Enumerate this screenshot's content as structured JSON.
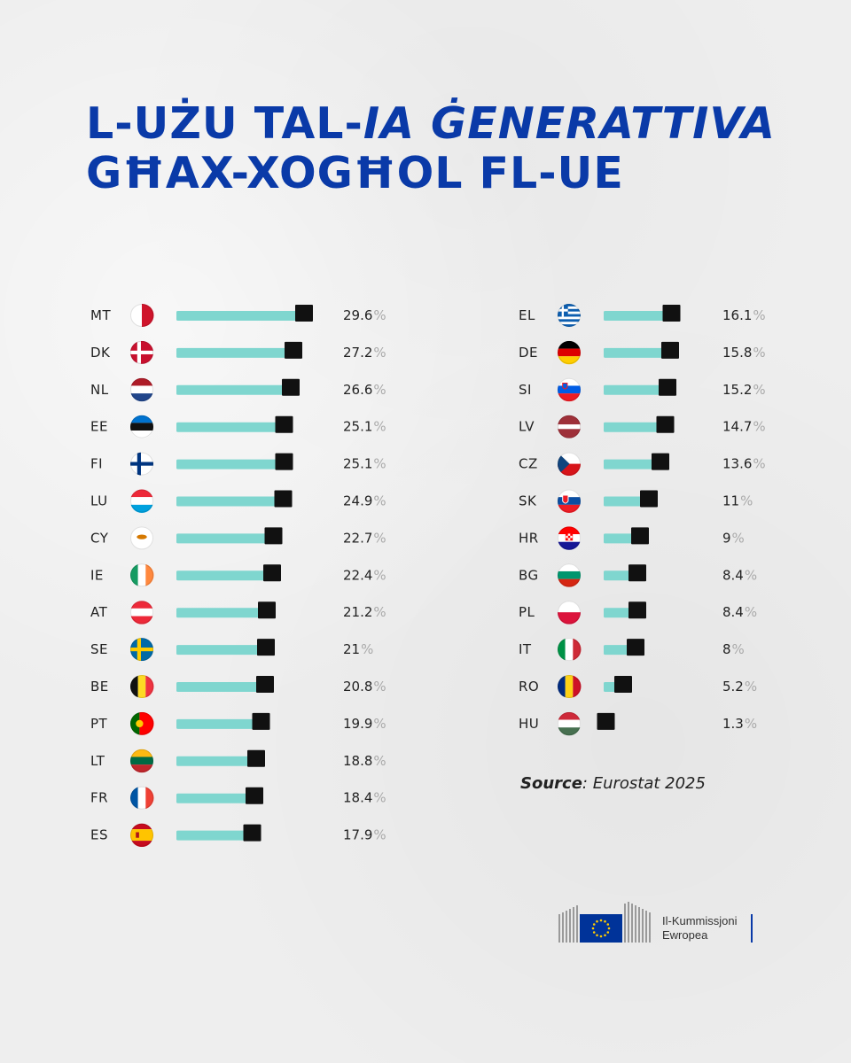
{
  "title": {
    "line1_a": "L-użu tal-",
    "line1_b": "IA ġenerattiva",
    "line2": "għax-xogħol fl-UE"
  },
  "source": {
    "label": "Source",
    "text": ": Eurostat 2025"
  },
  "logo": {
    "line1": "Il-Kummissjoni",
    "line2": "Ewropea",
    "colors": {
      "blue": "#003399",
      "star": "#ffcc00"
    }
  },
  "colors": {
    "title": "#0a3aa8",
    "bar": "#7fd6cf",
    "marker": "#111111",
    "percent_sign": "#aaaaaa"
  },
  "chart_data": {
    "type": "bar",
    "orientation": "horizontal",
    "unit": "%",
    "xlim": [
      0,
      30
    ],
    "categories": [
      "MT",
      "DK",
      "NL",
      "EE",
      "FI",
      "LU",
      "CY",
      "IE",
      "AT",
      "SE",
      "BE",
      "PT",
      "LT",
      "FR",
      "ES",
      "EL",
      "DE",
      "SI",
      "LV",
      "CZ",
      "SK",
      "HR",
      "BG",
      "PL",
      "IT",
      "RO",
      "HU"
    ],
    "values": [
      29.6,
      27.2,
      26.6,
      25.1,
      25.1,
      24.9,
      22.7,
      22.4,
      21.2,
      21,
      20.8,
      19.9,
      18.8,
      18.4,
      17.9,
      16.1,
      15.8,
      15.2,
      14.7,
      13.6,
      11,
      9,
      8.4,
      8.4,
      8,
      5.2,
      1.3
    ],
    "labels": [
      "29.6",
      "27.2",
      "26.6",
      "25.1",
      "25.1",
      "24.9",
      "22.7",
      "22.4",
      "21.2",
      "21",
      "20.8",
      "19.9",
      "18.8",
      "18.4",
      "17.9",
      "16.1",
      "15.8",
      "15.2",
      "14.7",
      "13.6",
      "11",
      "9",
      "8.4",
      "8.4",
      "8",
      "5.2",
      "1.3"
    ],
    "flag_icons": [
      "malta-flag-icon",
      "denmark-flag-icon",
      "netherlands-flag-icon",
      "estonia-flag-icon",
      "finland-flag-icon",
      "luxembourg-flag-icon",
      "cyprus-flag-icon",
      "ireland-flag-icon",
      "austria-flag-icon",
      "sweden-flag-icon",
      "belgium-flag-icon",
      "portugal-flag-icon",
      "lithuania-flag-icon",
      "france-flag-icon",
      "spain-flag-icon",
      "greece-flag-icon",
      "germany-flag-icon",
      "slovenia-flag-icon",
      "latvia-flag-icon",
      "czechia-flag-icon",
      "slovakia-flag-icon",
      "croatia-flag-icon",
      "bulgaria-flag-icon",
      "poland-flag-icon",
      "italy-flag-icon",
      "romania-flag-icon",
      "hungary-flag-icon"
    ],
    "legend": "none",
    "grid": false
  }
}
